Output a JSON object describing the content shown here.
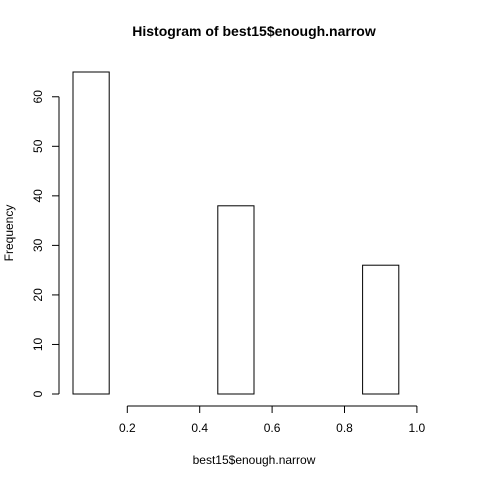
{
  "chart_data": {
    "type": "bar",
    "title": "Histogram of best15$enough.narrow",
    "xlabel": "best15$enough.narrow",
    "ylabel": "Frequency",
    "bins": [
      {
        "start": 0.05,
        "end": 0.15,
        "count": 65
      },
      {
        "start": 0.15,
        "end": 0.25,
        "count": 0
      },
      {
        "start": 0.25,
        "end": 0.35,
        "count": 0
      },
      {
        "start": 0.35,
        "end": 0.45,
        "count": 0
      },
      {
        "start": 0.45,
        "end": 0.55,
        "count": 38
      },
      {
        "start": 0.55,
        "end": 0.65,
        "count": 0
      },
      {
        "start": 0.65,
        "end": 0.75,
        "count": 0
      },
      {
        "start": 0.75,
        "end": 0.85,
        "count": 0
      },
      {
        "start": 0.85,
        "end": 0.95,
        "count": 26
      }
    ],
    "xlim": [
      0.05,
      1.05
    ],
    "ylim": [
      0,
      65
    ],
    "x_ticks": [
      0.2,
      0.4,
      0.6,
      0.8,
      1.0
    ],
    "x_tick_labels": [
      "0.2",
      "0.4",
      "0.6",
      "0.8",
      "1.0"
    ],
    "y_ticks": [
      0,
      10,
      20,
      30,
      40,
      50,
      60
    ],
    "y_tick_labels": [
      "0",
      "10",
      "20",
      "30",
      "40",
      "50",
      "60"
    ],
    "grid": false,
    "bar_fill": "#ffffff",
    "bar_stroke": "#000000"
  }
}
